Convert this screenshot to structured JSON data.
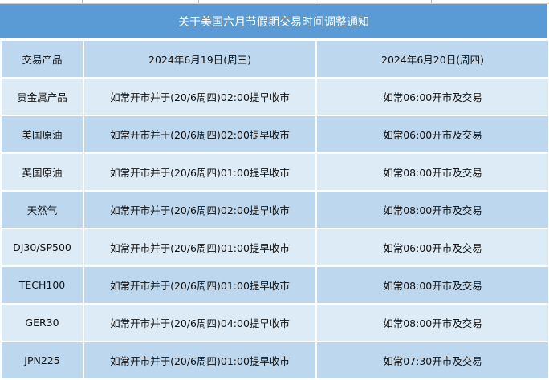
{
  "title": "关于美国六月节假期交易时间调整通知",
  "headers": [
    "交易产品",
    "2024年6月19日(周三)",
    "2024年6月20日(周四)"
  ],
  "rows": [
    [
      "贵金属产品",
      "如常开市并于(20/6周四)02:00提早收市",
      "如常06:00开市及交易"
    ],
    [
      "美国原油",
      "如常开市并于(20/6周四)02:00提早收市",
      "如常06:00开市及交易"
    ],
    [
      "英国原油",
      "如常开市并于(20/6周四)01:00提早收市",
      "如常08:00开市及交易"
    ],
    [
      "天然气",
      "如常开市并于(20/6周四)02:00提早收市",
      "如常08:00开市及交易"
    ],
    [
      "DJ30/SP500",
      "如常开市并于(20/6周四)01:00提早收市",
      "如常06:00开市及交易"
    ],
    [
      "TECH100",
      "如常开市并于(20/6周四)01:00提早收市",
      "如常08:00开市及交易"
    ],
    [
      "GER30",
      "如常开市并于(20/6周四)04:00提早收市",
      "如常08:00开市及交易"
    ],
    [
      "JPN225",
      "如常开市并于(20/6周四)01:00提早收市",
      "如常07:30开市及交易"
    ]
  ],
  "colors": {
    "title_bg": "#5b9bd5",
    "row_dark": "#bdd7ee",
    "row_light": "#ddebf7"
  }
}
